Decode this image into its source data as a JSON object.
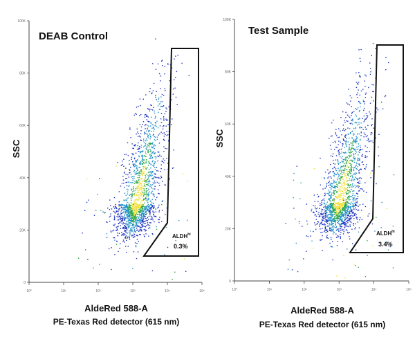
{
  "chart_data": [
    {
      "type": "scatter",
      "title": "DEAB Control",
      "xlabel": "AldeRed 588-A",
      "xlabel2": "PE-Texas Red detector (615 nm)",
      "ylabel": "SSC",
      "xscale": "log",
      "xlim": [
        1,
        100000
      ],
      "ylim": [
        0,
        100
      ],
      "x_ticks": [
        "10⁰",
        "10¹",
        "10²",
        "10³",
        "10⁴",
        "10⁵"
      ],
      "y_ticks": [
        "0",
        "20K",
        "40K",
        "60K",
        "80K",
        "100K"
      ],
      "gate": {
        "name": "ALDH",
        "sup": "hi",
        "percent": "0.3%"
      },
      "population": {
        "x_center_log": 3.1,
        "y_center": 30,
        "events": 1800
      }
    },
    {
      "type": "scatter",
      "title": "Test Sample",
      "xlabel": "AldeRed 588-A",
      "xlabel2": "PE-Texas Red detector (615 nm)",
      "ylabel": "SSC",
      "xscale": "log",
      "xlim": [
        1,
        100000
      ],
      "ylim": [
        0,
        100
      ],
      "x_ticks": [
        "10⁰",
        "10¹",
        "10²",
        "10³",
        "10⁴",
        "10⁵"
      ],
      "y_ticks": [
        "0",
        "20K",
        "40K",
        "60K",
        "80K",
        "100K"
      ],
      "gate": {
        "name": "ALDH",
        "sup": "hi",
        "percent": "3.4%"
      },
      "population": {
        "x_center_log": 3.0,
        "y_center": 30,
        "events": 1800
      }
    }
  ],
  "colors": {
    "axis": "#444444",
    "gate": "#111111",
    "density_low": "#1a2fc0",
    "density_mid": "#1e90c8",
    "density_high": "#2ea84a",
    "density_peak": "#f0e040"
  }
}
